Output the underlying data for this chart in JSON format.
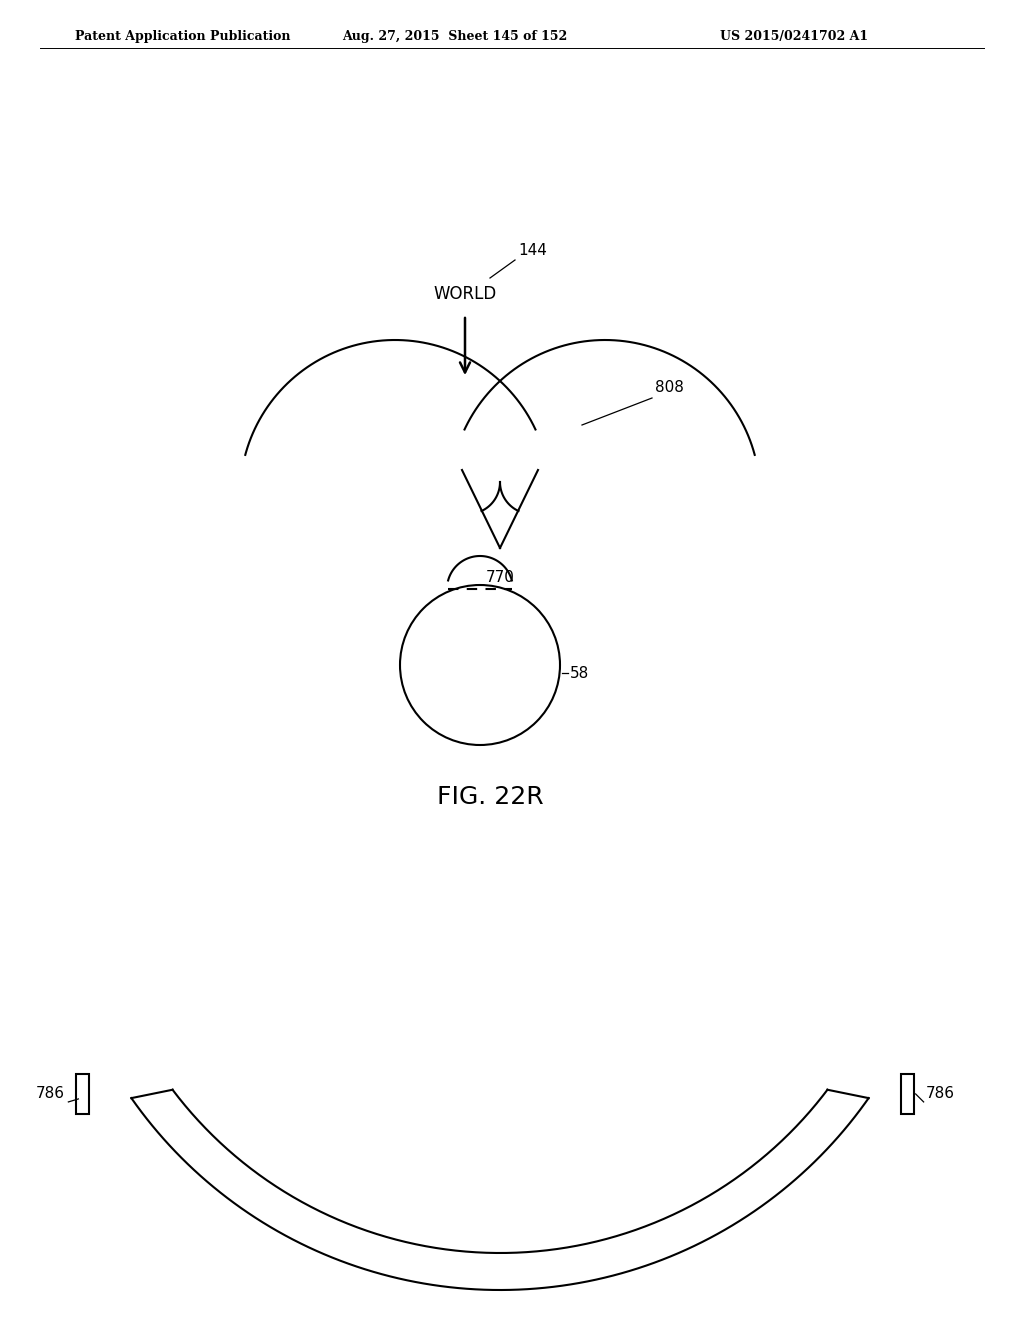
{
  "bg_color": "#ffffff",
  "header_left": "Patent Application Publication",
  "header_mid": "Aug. 27, 2015  Sheet 145 of 152",
  "header_right": "US 2015/0241702 A1",
  "header_fontsize": 9,
  "fig_label": "FIG. 22R",
  "fig_label_fontsize": 18,
  "label_144": "144",
  "label_world": "WORLD",
  "label_808": "808",
  "label_770": "770",
  "label_786_left": "786",
  "label_786_right": "786",
  "label_58": "58",
  "text_color": "#000000",
  "line_color": "#000000",
  "line_width": 1.5
}
